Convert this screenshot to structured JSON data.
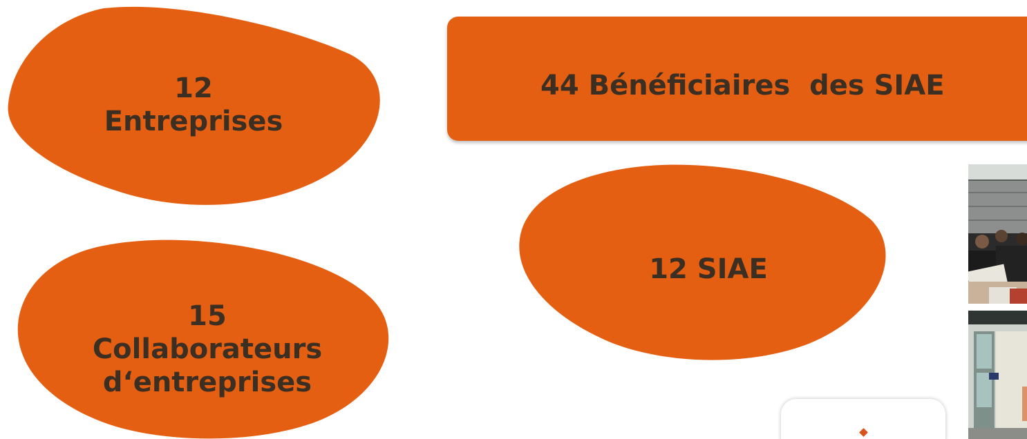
{
  "stats": {
    "entreprises": {
      "number": "12",
      "label": "Entreprises"
    },
    "collaborateurs": {
      "number": "15",
      "label_line1": "Collaborateurs",
      "label_line2": "d‘entreprises"
    },
    "siae": {
      "text": "12 SIAE"
    },
    "beneficiaires": {
      "text": "44 Bénéficiaires  des SIAE"
    }
  },
  "colors": {
    "accent_orange": "#e45f11",
    "text_dark": "#3a2f22"
  },
  "images": {
    "photo_top": "photo of seated participants reading documents",
    "photo_bottom": "photo of a building interior with windows"
  },
  "icons": {
    "card_marker": "diamond-icon"
  }
}
